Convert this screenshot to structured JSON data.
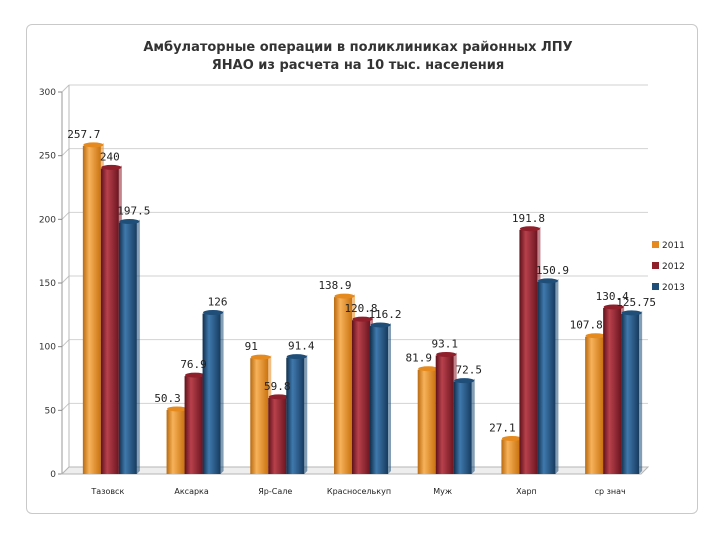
{
  "chart_data": {
    "type": "bar",
    "title_lines": [
      "Амбулаторные  операции  в  поликлиниках  районных   ЛПУ",
      "ЯНАО  из расчета на 10 тыс. населения"
    ],
    "categories": [
      "Тазовск",
      "Аксарка",
      "Яр-Сале",
      "Красноселькуп",
      "Муж",
      "Харп",
      "ср знач"
    ],
    "series": [
      {
        "name": "2011",
        "color": "#e58a1f",
        "values": [
          257.7,
          50.3,
          91,
          138.9,
          81.9,
          27.1,
          107.8
        ],
        "labels": [
          "257.7",
          "50.3",
          "91",
          "138.9",
          "81.9",
          "27.1",
          "107.8"
        ]
      },
      {
        "name": "2012",
        "color": "#8e1f2b",
        "values": [
          240,
          76.9,
          59.8,
          120.8,
          93.1,
          191.8,
          130.4
        ],
        "labels": [
          "240",
          "76.9",
          "59.8",
          "120.8",
          "93.1",
          "191.8",
          "130.4"
        ]
      },
      {
        "name": "2013",
        "color": "#1f4e79",
        "values": [
          197.5,
          126,
          91.4,
          116.2,
          72.5,
          150.9,
          125.75
        ],
        "labels": [
          "197.5",
          "126",
          "91.4",
          "116.2",
          "72.5",
          "150.9",
          "125.75"
        ]
      }
    ],
    "y_ticks": [
      "0",
      "50",
      "100",
      "150",
      "200",
      "250",
      "300"
    ],
    "ylim": [
      0,
      300
    ],
    "grid": true,
    "legend_position": "right"
  }
}
